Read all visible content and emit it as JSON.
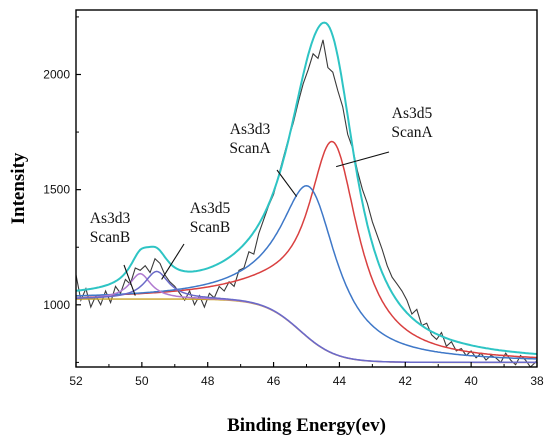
{
  "chart_data": {
    "type": "line",
    "xlabel": "Binding Energy(ev)",
    "ylabel": "Intensity",
    "x_reversed": true,
    "xlim": [
      52,
      38
    ],
    "ylim": [
      730,
      2280
    ],
    "x_ticks": [
      52,
      50,
      48,
      46,
      44,
      42,
      40,
      38
    ],
    "y_ticks": [
      1000,
      1500,
      2000
    ],
    "grid": false,
    "legend": "none",
    "colors": {
      "raw": "#3a3a3a",
      "envelope": "#2ec4c4",
      "scanA_3d5": "#d94040",
      "scanA_3d3": "#3f78c8",
      "scanB_3d3": "#b07ad0",
      "scanB_3d5": "#6a6ac8",
      "background": "#c9a227"
    },
    "series": [
      {
        "key": "raw",
        "x": [
          52.0,
          51.85,
          51.7,
          51.55,
          51.4,
          51.25,
          51.1,
          50.95,
          50.8,
          50.65,
          50.5,
          50.35,
          50.2,
          50.05,
          49.9,
          49.75,
          49.6,
          49.45,
          49.3,
          49.15,
          49.0,
          48.85,
          48.7,
          48.55,
          48.4,
          48.25,
          48.1,
          47.95,
          47.8,
          47.65,
          47.5,
          47.35,
          47.2,
          47.05,
          46.9,
          46.75,
          46.6,
          46.45,
          46.3,
          46.15,
          46.0,
          45.85,
          45.7,
          45.55,
          45.4,
          45.25,
          45.1,
          44.95,
          44.8,
          44.65,
          44.5,
          44.35,
          44.2,
          44.05,
          43.9,
          43.75,
          43.6,
          43.45,
          43.3,
          43.15,
          43.0,
          42.85,
          42.7,
          42.55,
          42.4,
          42.25,
          42.1,
          41.95,
          41.8,
          41.65,
          41.5,
          41.35,
          41.2,
          41.05,
          40.9,
          40.75,
          40.6,
          40.45,
          40.3,
          40.15,
          40.0,
          39.85,
          39.7,
          39.55,
          39.4,
          39.25,
          39.1,
          38.95,
          38.8,
          38.65,
          38.5,
          38.35,
          38.2,
          38.05,
          38.0
        ],
        "y": [
          1130,
          1020,
          1070,
          990,
          1040,
          1000,
          1060,
          1010,
          1080,
          1050,
          1110,
          1090,
          1160,
          1150,
          1170,
          1140,
          1200,
          1180,
          1130,
          1100,
          1080,
          1050,
          1020,
          1060,
          1000,
          1040,
          990,
          1050,
          1030,
          1080,
          1060,
          1100,
          1080,
          1150,
          1160,
          1230,
          1220,
          1310,
          1370,
          1430,
          1480,
          1560,
          1640,
          1720,
          1790,
          1880,
          1960,
          2020,
          2090,
          2070,
          2150,
          2030,
          2010,
          1930,
          1860,
          1740,
          1680,
          1580,
          1500,
          1440,
          1360,
          1300,
          1240,
          1170,
          1120,
          1090,
          1060,
          1020,
          960,
          980,
          910,
          920,
          870,
          850,
          880,
          820,
          840,
          800,
          810,
          780,
          800,
          770,
          790,
          760,
          780,
          770,
          750,
          790,
          760,
          740,
          780,
          760,
          730,
          750,
          760
        ]
      },
      {
        "key": "envelope",
        "name": "",
        "x": [],
        "y": []
      },
      {
        "key": "scanA_3d5",
        "name": "As3d5 ScanA",
        "center": 44.2,
        "height": 920,
        "width": 0.95
      },
      {
        "key": "scanA_3d3",
        "name": "As3d3 ScanA",
        "center": 44.9,
        "height": 660,
        "width": 1.05
      },
      {
        "key": "scanB_3d3",
        "name": "As3d3 ScanB",
        "center": 50.05,
        "height": 110,
        "width": 0.4
      },
      {
        "key": "scanB_3d5",
        "name": "As3d5 ScanB",
        "center": 49.55,
        "height": 120,
        "width": 0.45
      },
      {
        "key": "background",
        "name": "",
        "step_center": 45.2,
        "high": 1025,
        "low": 750
      }
    ],
    "annotations": [
      {
        "lines": [
          "As3d3",
          "ScanB"
        ],
        "target": [
          50.2,
          1040
        ]
      },
      {
        "lines": [
          "As3d5",
          "ScanB"
        ],
        "target": [
          49.4,
          1110
        ]
      },
      {
        "lines": [
          "As3d3",
          "ScanA"
        ],
        "target": [
          45.3,
          1470
        ]
      },
      {
        "lines": [
          "As3d5",
          "ScanA"
        ],
        "target": [
          44.1,
          1600
        ]
      }
    ]
  }
}
